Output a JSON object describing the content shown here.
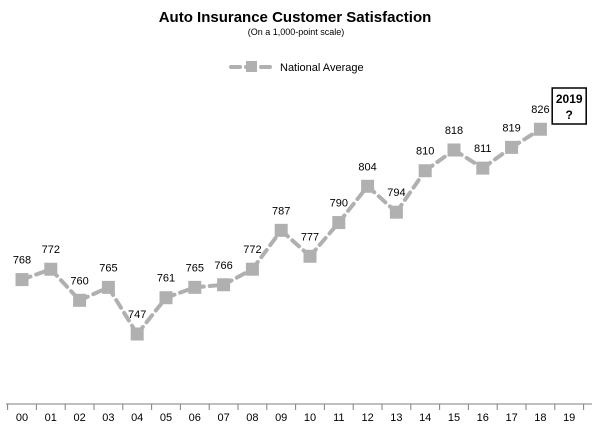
{
  "chart_data": {
    "type": "line",
    "title": "Auto Insurance Customer Satisfaction",
    "subtitle": "(On a 1,000-point scale)",
    "categories": [
      "00",
      "01",
      "02",
      "03",
      "04",
      "05",
      "06",
      "07",
      "08",
      "09",
      "10",
      "11",
      "12",
      "13",
      "14",
      "15",
      "16",
      "17",
      "18",
      "19"
    ],
    "series": [
      {
        "name": "National Average",
        "values": [
          768,
          772,
          760,
          765,
          747,
          761,
          765,
          766,
          772,
          787,
          777,
          790,
          804,
          794,
          810,
          818,
          811,
          819,
          826,
          null
        ]
      }
    ],
    "data_labels": [
      "768",
      "772",
      "760",
      "765",
      "747",
      "761",
      "765",
      "766",
      "772",
      "787",
      "777",
      "790",
      "804",
      "794",
      "810",
      "818",
      "811",
      "819",
      "826"
    ],
    "callout": {
      "category": "19",
      "line1": "2019",
      "line2": "?"
    },
    "ylim": [
      720,
      845
    ],
    "grid": false,
    "legend_position": "top-center",
    "colors": {
      "series": "#b0b0b0",
      "axis": "#7f7f7f",
      "text": "#000000"
    }
  }
}
